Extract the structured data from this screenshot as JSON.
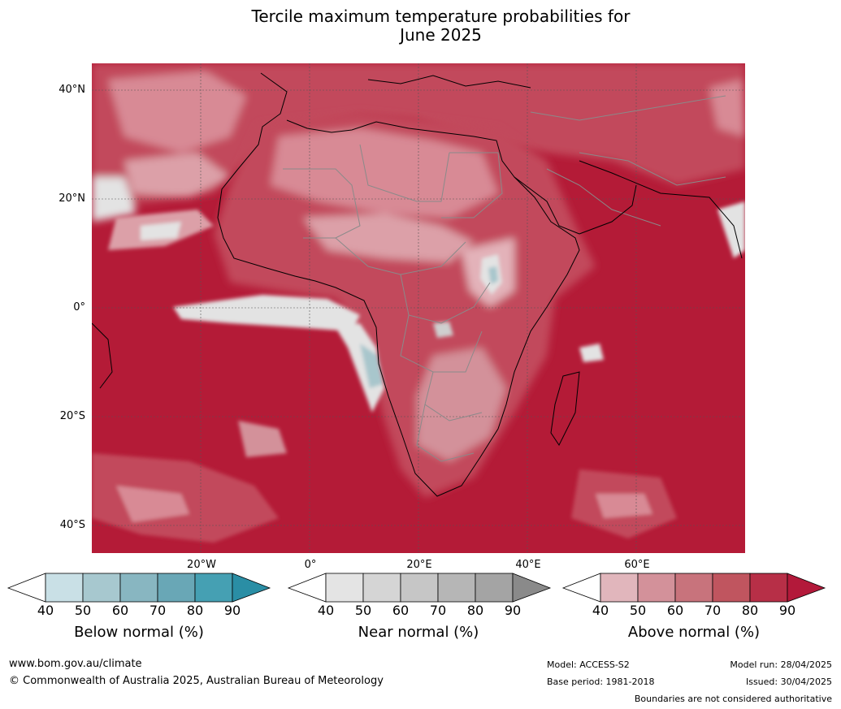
{
  "title_line1": "Tercile maximum temperature probabilities for",
  "title_line2": "June 2025",
  "map": {
    "lat_labels": [
      "40°N",
      "20°N",
      "0°",
      "20°S",
      "40°S"
    ],
    "lon_labels": [
      "20°W",
      "0°",
      "20°E",
      "40°E",
      "60°E"
    ],
    "colors": {
      "ocean_above_90": "#b41b37",
      "land_above_70": "#c95565",
      "land_above_60": "#d88a95",
      "above_50": "#e3b2b9",
      "near_normal": "#e3e3e3",
      "below_normal": "#a8c6cc",
      "coastline": "#000000",
      "borders": "#8a8a8a",
      "gridlines": "#555555"
    }
  },
  "legends": [
    {
      "caption": "Below normal (%)",
      "ticks": [
        "40",
        "50",
        "60",
        "70",
        "80",
        "90"
      ],
      "colors": [
        "#ffffff",
        "#c9e0e6",
        "#a7c8cf",
        "#88b6c1",
        "#69a7b6",
        "#45a0b3",
        "#2a8ea5"
      ]
    },
    {
      "caption": "Near normal (%)",
      "ticks": [
        "40",
        "50",
        "60",
        "70",
        "80",
        "90"
      ],
      "colors": [
        "#ffffff",
        "#e4e4e4",
        "#d5d5d5",
        "#c6c6c6",
        "#b6b6b6",
        "#a4a4a4",
        "#8a8a8a"
      ]
    },
    {
      "caption": "Above normal (%)",
      "ticks": [
        "40",
        "50",
        "60",
        "70",
        "80",
        "90"
      ],
      "colors": [
        "#ffffff",
        "#e1b6bc",
        "#d3919a",
        "#c8737c",
        "#c0555f",
        "#b72f47",
        "#b3193a"
      ]
    }
  ],
  "footer": {
    "website": "www.bom.gov.au/climate",
    "copyright": "© Commonwealth of Australia 2025, Australian Bureau of Meteorology",
    "model": "Model: ACCESS-S2",
    "base_period": "Base period: 1981-2018",
    "model_run": "Model run: 28/04/2025",
    "issued": "Issued: 30/04/2025",
    "disclaimer": "Boundaries are not considered authoritative"
  }
}
